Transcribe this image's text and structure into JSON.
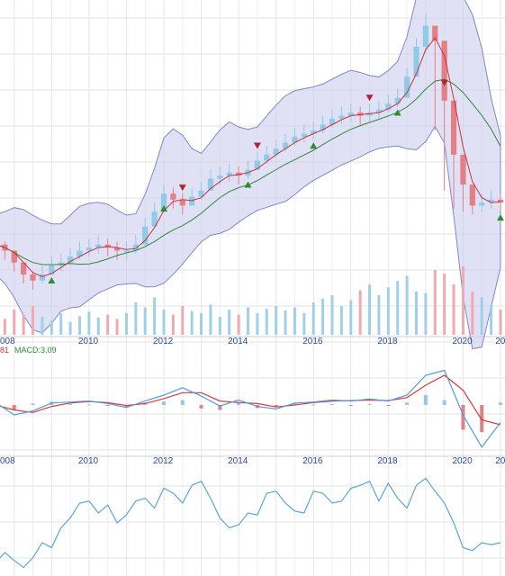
{
  "colors": {
    "up": "#8fcbe6",
    "down": "#e47f86",
    "ma_short": "#c8333b",
    "ma_long": "#2e8a36",
    "band_fill": "#c9c9ee",
    "band_line": "#8585c8",
    "volume_up": "#9fd0ea",
    "volume_down": "#eeaaae",
    "macd_line": "#4a9fd8",
    "signal_line": "#d83a3a",
    "osc_line": "#5aa7dc",
    "grid": "#e6e6e6",
    "axis_text": "#2a4a9a",
    "buy_marker": "#2e8a36",
    "sell_marker": "#b0242c"
  },
  "year_labels": [
    "008",
    "2010",
    "2012",
    "2014",
    "2016",
    "2018",
    "2020",
    "20"
  ],
  "macd_legend": {
    "prefix": "81",
    "macd_text": "MACD:3.09"
  },
  "chart_data": [
    {
      "type": "candlestick",
      "panel": "price",
      "x_unit": "year",
      "x_range": [
        2007.5,
        2021.0
      ],
      "y_range": [
        0,
        100
      ],
      "series": [
        {
          "name": "",
          "x": [
            2007.5,
            2007.75,
            2008.0,
            2008.25,
            2008.5,
            2008.75,
            2009.0,
            2009.25,
            2009.5,
            2009.75,
            2010.0,
            2010.25,
            2010.5,
            2010.75,
            2011.0,
            2011.25,
            2011.5,
            2011.75,
            2012.0,
            2012.25,
            2012.5,
            2012.75,
            2013.0,
            2013.25,
            2013.5,
            2013.75,
            2014.0,
            2014.25,
            2014.5,
            2014.75,
            2015.0,
            2015.25,
            2015.5,
            2015.75,
            2016.0,
            2016.25,
            2016.5,
            2016.75,
            2017.0,
            2017.25,
            2017.5,
            2017.75,
            2018.0,
            2018.25,
            2018.5,
            2018.75,
            2019.0,
            2019.25,
            2019.5,
            2019.75,
            2020.0,
            2020.25,
            2020.5,
            2020.75,
            2021.0
          ],
          "close": [
            22,
            20,
            16,
            12,
            10,
            12,
            15,
            16,
            18,
            20,
            21,
            22,
            21,
            20,
            20,
            22,
            28,
            33,
            39,
            37,
            35,
            38,
            40,
            44,
            45,
            46,
            45,
            47,
            50,
            52,
            54,
            56,
            58,
            59,
            60,
            62,
            64,
            65,
            66,
            65,
            66,
            67,
            69,
            71,
            78,
            88,
            95,
            90,
            70,
            52,
            42,
            35,
            36,
            37,
            36
          ],
          "high": [
            25,
            23,
            19,
            15,
            13,
            15,
            18,
            19,
            21,
            23,
            24,
            25,
            24,
            23,
            23,
            25,
            31,
            36,
            42,
            41,
            39,
            41,
            43,
            47,
            48,
            49,
            48,
            50,
            53,
            55,
            57,
            59,
            61,
            62,
            63,
            65,
            67,
            68,
            69,
            68,
            69,
            70,
            72,
            74,
            81,
            91,
            99,
            93,
            74,
            56,
            46,
            38,
            39,
            40,
            39
          ],
          "low": [
            19,
            17,
            13,
            9,
            7,
            9,
            12,
            13,
            15,
            17,
            18,
            19,
            18,
            17,
            17,
            19,
            25,
            30,
            36,
            34,
            32,
            35,
            37,
            41,
            42,
            43,
            42,
            44,
            47,
            49,
            51,
            53,
            55,
            56,
            57,
            59,
            61,
            62,
            63,
            62,
            63,
            64,
            66,
            68,
            75,
            85,
            86,
            60,
            40,
            34,
            33,
            32,
            33,
            34,
            33
          ]
        }
      ],
      "overlays": [
        "bollinger band",
        "short moving average",
        "long moving average"
      ],
      "markers": {
        "buy_x": [
          2009.0,
          2012.0,
          2014.25,
          2016.0,
          2018.25,
          2021.0
        ],
        "sell_x": [
          2012.5,
          2014.5,
          2017.5,
          2019.5
        ]
      }
    },
    {
      "type": "bar",
      "panel": "volume",
      "x_unit": "year",
      "x_range": [
        2007.5,
        2021.0
      ],
      "y_range": [
        0,
        100
      ],
      "values": [
        30,
        22,
        35,
        28,
        40,
        25,
        20,
        30,
        18,
        26,
        32,
        24,
        28,
        22,
        30,
        45,
        38,
        52,
        35,
        28,
        40,
        33,
        30,
        42,
        25,
        35,
        28,
        38,
        30,
        36,
        40,
        34,
        38,
        30,
        45,
        50,
        55,
        40,
        48,
        62,
        70,
        55,
        66,
        75,
        82,
        60,
        58,
        90,
        85,
        70,
        95,
        60,
        52,
        40,
        35
      ]
    },
    {
      "type": "line",
      "panel": "macd",
      "x_unit": "year",
      "x_range": [
        2007.5,
        2021.0
      ],
      "y_range": [
        -10,
        10
      ],
      "series": [
        {
          "name": "MACD",
          "x": [
            2007.5,
            2008.0,
            2008.5,
            2009.0,
            2009.5,
            2010.0,
            2010.5,
            2011.0,
            2011.5,
            2012.0,
            2012.5,
            2013.0,
            2013.5,
            2014.0,
            2014.5,
            2015.0,
            2015.5,
            2016.0,
            2016.5,
            2017.0,
            2017.5,
            2018.0,
            2018.5,
            2019.0,
            2019.5,
            2020.0,
            2020.5,
            2021.0
          ],
          "values": [
            0.5,
            -2.0,
            -1.2,
            0.4,
            0.6,
            0.8,
            0.3,
            -0.5,
            0.8,
            2.0,
            3.5,
            1.8,
            -0.2,
            1.0,
            -0.3,
            -0.8,
            0.4,
            0.6,
            1.0,
            0.8,
            1.2,
            0.8,
            2.0,
            6.0,
            7.0,
            -2.0,
            -8.5,
            -3.5
          ]
        },
        {
          "name": "Signal",
          "x": [
            2007.5,
            2008.0,
            2008.5,
            2009.0,
            2009.5,
            2010.0,
            2010.5,
            2011.0,
            2011.5,
            2012.0,
            2012.5,
            2013.0,
            2013.5,
            2014.0,
            2014.5,
            2015.0,
            2015.5,
            2016.0,
            2016.5,
            2017.0,
            2017.5,
            2018.0,
            2018.5,
            2019.0,
            2019.5,
            2020.0,
            2020.5,
            2021.0
          ],
          "values": [
            0.0,
            -1.0,
            -1.5,
            -0.3,
            0.4,
            0.7,
            0.5,
            -0.1,
            0.3,
            1.3,
            2.5,
            2.5,
            0.8,
            0.5,
            0.3,
            -0.4,
            0.0,
            0.5,
            0.8,
            0.9,
            1.0,
            0.9,
            1.5,
            4.0,
            6.0,
            3.0,
            -3.0,
            -4.0
          ]
        }
      ],
      "histogram": [
        0.5,
        -1.0,
        0.3,
        0.7,
        0.2,
        0.1,
        -0.2,
        -0.4,
        0.5,
        0.7,
        1.0,
        -0.7,
        -1.0,
        0.5,
        -0.6,
        -0.4,
        0.4,
        0.1,
        0.2,
        -0.1,
        0.2,
        -0.1,
        0.5,
        2.0,
        1.0,
        -5.0,
        -5.5,
        0.5
      ]
    },
    {
      "type": "line",
      "panel": "oscillator",
      "x_unit": "year",
      "x_range": [
        2007.5,
        2021.0
      ],
      "y_range": [
        0,
        100
      ],
      "series": [
        {
          "name": "",
          "x": [
            2007.5,
            2007.75,
            2008.0,
            2008.25,
            2008.5,
            2008.75,
            2009.0,
            2009.25,
            2009.5,
            2009.75,
            2010.0,
            2010.25,
            2010.5,
            2010.75,
            2011.0,
            2011.25,
            2011.5,
            2011.75,
            2012.0,
            2012.25,
            2012.5,
            2012.75,
            2013.0,
            2013.25,
            2013.5,
            2013.75,
            2014.0,
            2014.25,
            2014.5,
            2014.75,
            2015.0,
            2015.25,
            2015.5,
            2015.75,
            2016.0,
            2016.25,
            2016.5,
            2016.75,
            2017.0,
            2017.25,
            2017.5,
            2017.75,
            2018.0,
            2018.25,
            2018.5,
            2018.75,
            2019.0,
            2019.25,
            2019.5,
            2019.75,
            2020.0,
            2020.25,
            2020.5,
            2020.75,
            2021.0
          ],
          "values": [
            10,
            20,
            12,
            5,
            15,
            30,
            25,
            45,
            55,
            70,
            72,
            60,
            68,
            50,
            58,
            72,
            75,
            65,
            85,
            80,
            70,
            88,
            92,
            75,
            55,
            45,
            48,
            60,
            58,
            80,
            82,
            70,
            62,
            60,
            82,
            80,
            70,
            72,
            85,
            88,
            92,
            72,
            90,
            75,
            65,
            88,
            95,
            82,
            70,
            50,
            25,
            22,
            30,
            28,
            30
          ]
        }
      ]
    }
  ]
}
